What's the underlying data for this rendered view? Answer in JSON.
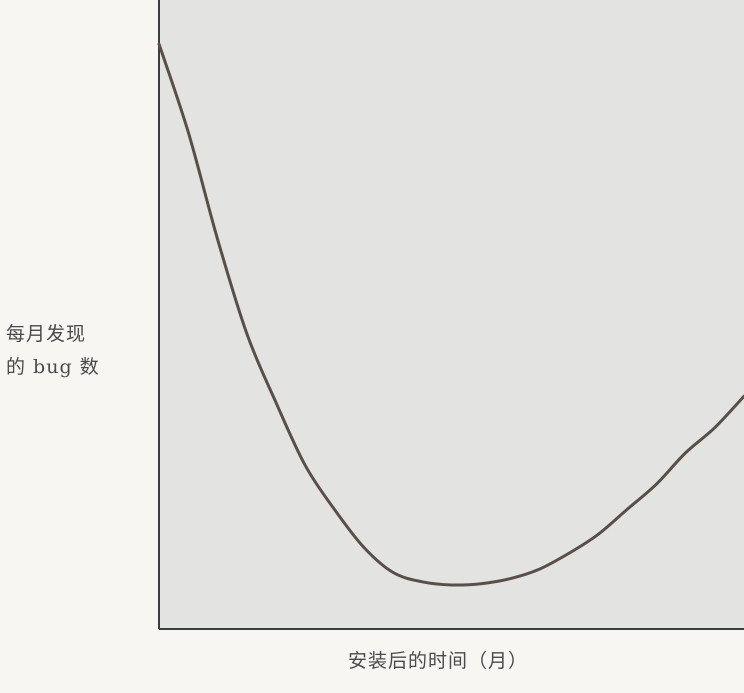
{
  "chart_data": {
    "type": "line",
    "title": "",
    "xlabel": "安装后的时间（月）",
    "ylabel_lines": [
      "每月发现",
      "的 bug 数"
    ],
    "xlim": [
      0,
      1
    ],
    "ylim": [
      0,
      1
    ],
    "grid": false,
    "legend": "none",
    "series": [
      {
        "x": [
          0,
          0.05,
          0.1,
          0.15,
          0.2,
          0.25,
          0.3,
          0.35,
          0.4,
          0.45,
          0.5,
          0.55,
          0.6,
          0.65,
          0.7,
          0.75,
          0.8,
          0.85,
          0.9,
          0.95,
          1.0
        ],
        "values": [
          0.93,
          0.79,
          0.62,
          0.47,
          0.36,
          0.26,
          0.19,
          0.13,
          0.09,
          0.075,
          0.07,
          0.072,
          0.08,
          0.095,
          0.12,
          0.15,
          0.19,
          0.23,
          0.28,
          0.32,
          0.37
        ]
      }
    ]
  },
  "colors": {
    "background": "#f7f6f3",
    "plot_area": "#e3e3e1",
    "axis": "#3e3e3e",
    "curve": "#5a4f48",
    "text": "#4a4a4a"
  }
}
